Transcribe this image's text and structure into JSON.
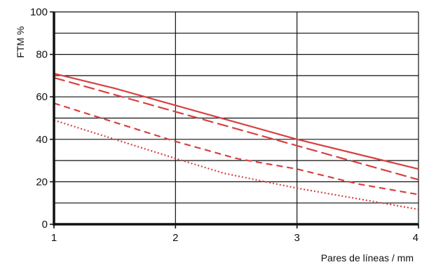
{
  "chart_data": {
    "type": "line",
    "xlabel": "Pares de líneas  / mm",
    "ylabel": "FTM %",
    "xlim": [
      1,
      4
    ],
    "ylim": [
      0,
      100
    ],
    "x_ticks": [
      1,
      2,
      3,
      4
    ],
    "y_ticks": [
      0,
      20,
      40,
      60,
      80,
      100
    ],
    "grid": true,
    "series_color": "#d94040",
    "series": [
      {
        "line_style": "solid",
        "x": [
          1,
          1.5,
          2,
          2.5,
          3,
          3.5,
          4
        ],
        "y": [
          71,
          64,
          56,
          48,
          40,
          33,
          26
        ]
      },
      {
        "line_style": "long-dash",
        "x": [
          1,
          1.5,
          2,
          2.5,
          3,
          3.5,
          4
        ],
        "y": [
          69,
          61,
          53,
          45,
          37,
          29,
          21
        ]
      },
      {
        "line_style": "short-dash",
        "x": [
          1,
          1.5,
          2,
          2.5,
          3,
          3.5,
          4
        ],
        "y": [
          57,
          48,
          39,
          31,
          26,
          19,
          14
        ]
      },
      {
        "line_style": "dotted",
        "x": [
          1,
          1.5,
          2,
          2.4,
          3,
          3.5,
          4
        ],
        "y": [
          49,
          40,
          31,
          24,
          17,
          12,
          7
        ]
      }
    ]
  }
}
